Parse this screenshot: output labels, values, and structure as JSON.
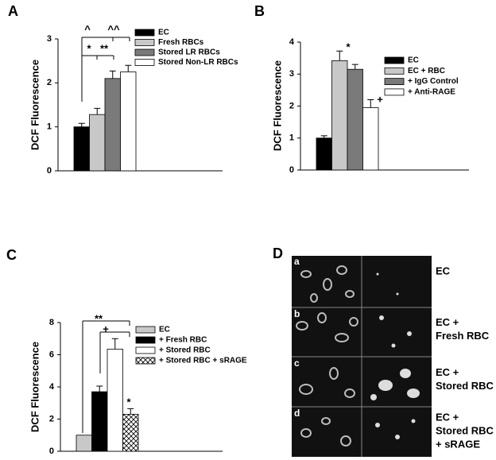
{
  "chart_data": [
    {
      "type": "bar",
      "panel_label": "A",
      "y_label": "DCF Fluorescence",
      "categories": [
        null
      ],
      "series": [
        {
          "name": "EC",
          "color": "#000000",
          "values": [
            1.0
          ],
          "errors": [
            0.08
          ]
        },
        {
          "name": "Fresh RBCs",
          "color": "#c8c8c8",
          "values": [
            1.28
          ],
          "errors": [
            0.14
          ]
        },
        {
          "name": "Stored LR RBCs",
          "color": "#7a7a7a",
          "values": [
            2.1
          ],
          "errors": [
            0.17
          ]
        },
        {
          "name": "Stored Non-LR RBCs",
          "color": "#ffffff",
          "values": [
            2.25
          ],
          "errors": [
            0.15
          ]
        }
      ],
      "ylim": [
        0,
        3
      ],
      "yticks": [
        0,
        1,
        2,
        3
      ],
      "annotations": [
        "^",
        "^^",
        "*",
        "**"
      ]
    },
    {
      "type": "bar",
      "panel_label": "B",
      "y_label": "DCF Fluorescence",
      "categories": [
        null
      ],
      "series": [
        {
          "name": "EC",
          "color": "#000000",
          "values": [
            1.0
          ],
          "errors": [
            0.07
          ]
        },
        {
          "name": "EC + RBC",
          "color": "#c8c8c8",
          "values": [
            3.42
          ],
          "errors": [
            0.3
          ]
        },
        {
          "name": "+ IgG Control",
          "color": "#7a7a7a",
          "values": [
            3.15
          ],
          "errors": [
            0.15
          ]
        },
        {
          "name": "+ Anti-RAGE",
          "color": "#ffffff",
          "values": [
            1.95
          ],
          "errors": [
            0.25
          ]
        }
      ],
      "ylim": [
        0,
        4
      ],
      "yticks": [
        0,
        1,
        2,
        3,
        4
      ],
      "annotations": [
        "*",
        "+"
      ]
    },
    {
      "type": "bar",
      "panel_label": "C",
      "y_label": "DCF Fluorescence",
      "categories": [
        null
      ],
      "series": [
        {
          "name": "EC",
          "color": "#c8c8c8",
          "values": [
            1.0
          ],
          "errors": [
            null
          ]
        },
        {
          "name": "+ Fresh RBC",
          "color": "#000000",
          "values": [
            3.7
          ],
          "errors": [
            0.35
          ]
        },
        {
          "name": "+ Stored RBC",
          "color": "#ffffff",
          "values": [
            6.35
          ],
          "errors": [
            0.65
          ]
        },
        {
          "name": "+ Stored RBC + sRAGE",
          "color": "#ffffff",
          "hatch": "cross",
          "values": [
            2.3
          ],
          "errors": [
            0.35
          ]
        }
      ],
      "ylim": [
        0,
        8
      ],
      "yticks": [
        0,
        2,
        4,
        6,
        8
      ],
      "annotations": [
        "**",
        "+",
        "*"
      ]
    }
  ],
  "panel_d": {
    "panel_label": "D",
    "rows": [
      {
        "letter": "a",
        "label": [
          "EC"
        ]
      },
      {
        "letter": "b",
        "label": [
          "EC +",
          "Fresh RBC"
        ]
      },
      {
        "letter": "c",
        "label": [
          "EC +",
          "Stored RBC"
        ]
      },
      {
        "letter": "d",
        "label": [
          "EC +",
          "Stored RBC",
          "+ sRAGE"
        ]
      }
    ]
  }
}
